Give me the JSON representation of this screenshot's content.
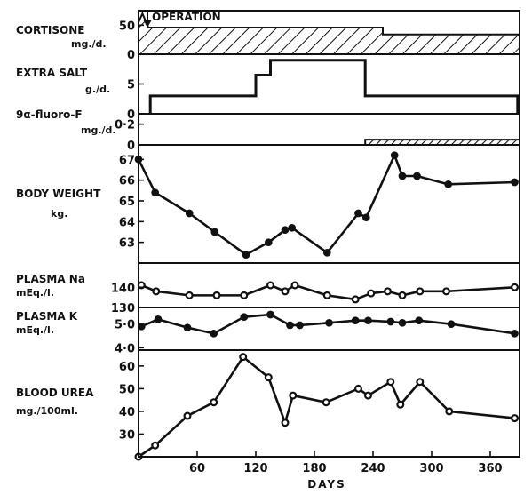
{
  "chart_data": {
    "type": "line",
    "xlabel": "DAYS",
    "xlim": [
      0,
      390
    ],
    "xticks": [
      60,
      120,
      180,
      240,
      300,
      360
    ],
    "xtick_labels": [
      "60",
      "120",
      "180",
      "240",
      "300",
      "360"
    ],
    "annotation": "OPERATION",
    "annotation_x": 10,
    "panels": [
      {
        "id": "cortisone",
        "label": "CORTISONE",
        "unit": "mg./d.",
        "kind": "hatched-step",
        "ylim": [
          0,
          75
        ],
        "yticks": [
          0,
          50
        ],
        "ytick_labels": [
          "0",
          "50"
        ],
        "steps": [
          [
            0,
            55
          ],
          [
            4,
            70
          ],
          [
            10,
            46
          ],
          [
            250,
            46
          ],
          [
            250,
            34
          ],
          [
            390,
            34
          ]
        ],
        "base": 0
      },
      {
        "id": "salt",
        "label": "EXTRA SALT",
        "unit": "g./d.",
        "kind": "step",
        "ylim": [
          0,
          10
        ],
        "yticks": [
          0,
          5
        ],
        "ytick_labels": [
          "0",
          "5"
        ],
        "steps": [
          [
            12,
            0
          ],
          [
            12,
            3
          ],
          [
            120,
            3
          ],
          [
            120,
            6.5
          ],
          [
            135,
            6.5
          ],
          [
            135,
            9
          ],
          [
            232,
            9
          ],
          [
            232,
            3
          ],
          [
            388,
            3
          ],
          [
            388,
            0
          ]
        ]
      },
      {
        "id": "fluoro",
        "label": "9α-fluoro-F",
        "unit": "mg./d.",
        "kind": "hatched-step",
        "ylim": [
          0,
          0.3
        ],
        "yticks": [
          0,
          0.2
        ],
        "ytick_labels": [
          "0",
          "0·2"
        ],
        "steps": [
          [
            232,
            0.05
          ],
          [
            390,
            0.05
          ]
        ],
        "base": 0
      },
      {
        "id": "weight",
        "label": "BODY WEIGHT",
        "unit": "kg.",
        "kind": "line",
        "ylim": [
          62,
          67.7
        ],
        "yticks": [
          63,
          64,
          65,
          66,
          67
        ],
        "ytick_labels": [
          "63",
          "64",
          "65",
          "66",
          "67"
        ],
        "series": [
          {
            "x": [
              0,
              17,
              52,
              78,
              110,
              133,
              150,
              157,
              193,
              225,
              233,
              262,
              270,
              285,
              317,
              385
            ],
            "y": [
              67,
              65.4,
              64.4,
              63.5,
              62.4,
              63,
              63.6,
              63.7,
              62.5,
              64.4,
              64.2,
              67.2,
              66.2,
              66.2,
              65.8,
              65.9
            ],
            "marker": "filled"
          }
        ]
      },
      {
        "id": "na",
        "label": "PLASMA  Na",
        "unit": "mEq./l.",
        "kind": "line",
        "ylim": [
          130,
          152
        ],
        "yticks": [
          130,
          140
        ],
        "ytick_labels": [
          "130",
          "140"
        ],
        "series": [
          {
            "x": [
              3,
              18,
              52,
              80,
              108,
              135,
              150,
              160,
              193,
              222,
              238,
              255,
              270,
              288,
              315,
              385
            ],
            "y": [
              141,
              138,
              136,
              136,
              136,
              141,
              138,
              141,
              136,
              134,
              137,
              138,
              136,
              138,
              138,
              140
            ],
            "marker": "open"
          }
        ]
      },
      {
        "id": "k",
        "label": "PLASMA  K",
        "unit": "mEq./l.",
        "kind": "line",
        "ylim": [
          3.9,
          5.7
        ],
        "yticks": [
          4.0,
          5.0
        ],
        "ytick_labels": [
          "4·0",
          "5·0"
        ],
        "series": [
          {
            "x": [
              3,
              20,
              50,
              77,
              108,
              135,
              155,
              165,
              195,
              222,
              235,
              258,
              270,
              287,
              320,
              385
            ],
            "y": [
              4.9,
              5.2,
              4.85,
              4.6,
              5.3,
              5.4,
              4.95,
              4.95,
              5.05,
              5.15,
              5.15,
              5.1,
              5.05,
              5.15,
              5,
              4.6
            ],
            "marker": "filled"
          }
        ]
      },
      {
        "id": "urea",
        "label": "BLOOD UREA",
        "unit": "mg./100ml.",
        "kind": "line",
        "ylim": [
          20,
          67
        ],
        "yticks": [
          30,
          40,
          50,
          60
        ],
        "ytick_labels": [
          "30",
          "40",
          "50",
          "60"
        ],
        "series": [
          {
            "x": [
              0,
              17,
              50,
              77,
              107,
              133,
              150,
              158,
              192,
              225,
              235,
              258,
              268,
              288,
              318,
              385
            ],
            "y": [
              20,
              25,
              38,
              44,
              64,
              55,
              35,
              47,
              44,
              50,
              47,
              53,
              43,
              53,
              40,
              37
            ],
            "marker": "open"
          }
        ]
      }
    ]
  }
}
